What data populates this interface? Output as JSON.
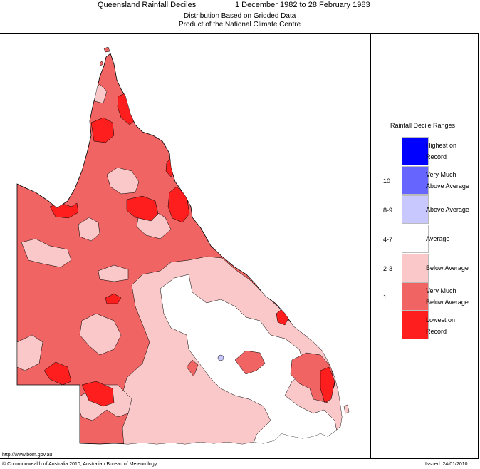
{
  "header": {
    "title": "Queensland Rainfall Deciles",
    "period": "1 December 1982 to 28 February 1983",
    "subtitle1": "Distribution Based on Gridded Data",
    "subtitle2": "Product of the National Climate Centre"
  },
  "legend": {
    "title": "Rainfall Decile Ranges",
    "items": [
      {
        "line1": "Highest on",
        "line2": "Record",
        "code": "",
        "color": "#0000ff"
      },
      {
        "line1": "Very Much",
        "line2": "Above Average",
        "code": "10",
        "color": "#6666ff"
      },
      {
        "line1": "Above Average",
        "line2": "",
        "code": "8-9",
        "color": "#c8c8ff"
      },
      {
        "line1": "Average",
        "line2": "",
        "code": "4-7",
        "color": "#ffffff"
      },
      {
        "line1": "Below Average",
        "line2": "",
        "code": "2-3",
        "color": "#fac8c8"
      },
      {
        "line1": "Very Much",
        "line2": "Below Average",
        "code": "1",
        "color": "#f06464"
      },
      {
        "line1": "Lowest on",
        "line2": "Record",
        "code": "",
        "color": "#ff1e1e"
      }
    ]
  },
  "footer": {
    "url": "http://www.bom.gov.au",
    "copyright": "© Commonwealth of Australia 2010, Australian Bureau of Meteorology",
    "issued": "Issued: 24/01/2010"
  },
  "map_colors": {
    "very_much_below": "#f06464",
    "below": "#fac8c8",
    "average": "#ffffff",
    "lowest": "#ff1e1e",
    "above": "#c8c8ff"
  }
}
